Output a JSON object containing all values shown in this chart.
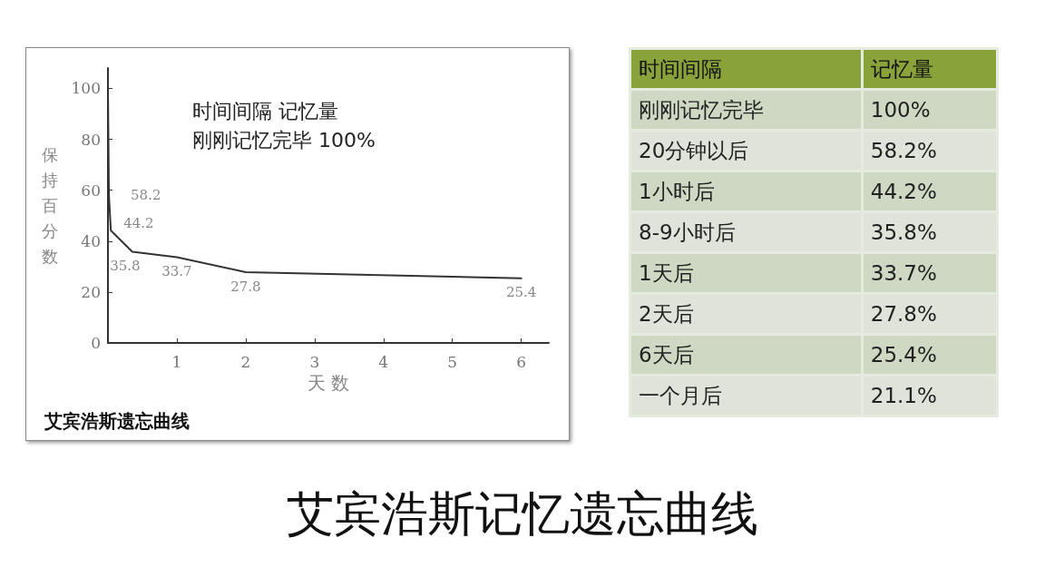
{
  "chart_data": [
    {
      "type": "line",
      "title": "艾宾浩斯遗忘曲线",
      "xlabel": "天 数",
      "ylabel": "保持百分数",
      "x": [
        0,
        0.0139,
        0.0417,
        0.354,
        1,
        2,
        6
      ],
      "series": [
        {
          "color": "#333333",
          "values": [
            100,
            58.2,
            44.2,
            35.8,
            33.7,
            27.8,
            25.4
          ],
          "value_labels": [
            null,
            "58.2",
            "44.2",
            "35.8",
            "33.7",
            "27.8",
            "25.4"
          ]
        }
      ],
      "xlim": [
        0,
        6.4
      ],
      "xticks": [
        1,
        2,
        3,
        4,
        5,
        6
      ],
      "ylim": [
        0,
        108
      ],
      "yticks": [
        0,
        20,
        40,
        60,
        80,
        100
      ],
      "annotations": [
        "时间间隔 记忆量",
        "刚刚记忆完毕 100%"
      ],
      "grid": false
    },
    {
      "type": "other",
      "title": "艾宾浩斯记忆遗忘曲线",
      "xlabel": "时间间隔",
      "ylabel": "记忆量",
      "categories": [
        "刚刚记忆完毕",
        "20分钟以后",
        "1小时后",
        "8-9小时后",
        "1天后",
        "2天后",
        "6天后",
        "一个月后"
      ],
      "value_labels": [
        "100%",
        "58.2%",
        "44.2%",
        "35.8%",
        "33.7%",
        "27.8%",
        "25.4%",
        "21.1%"
      ]
    }
  ]
}
